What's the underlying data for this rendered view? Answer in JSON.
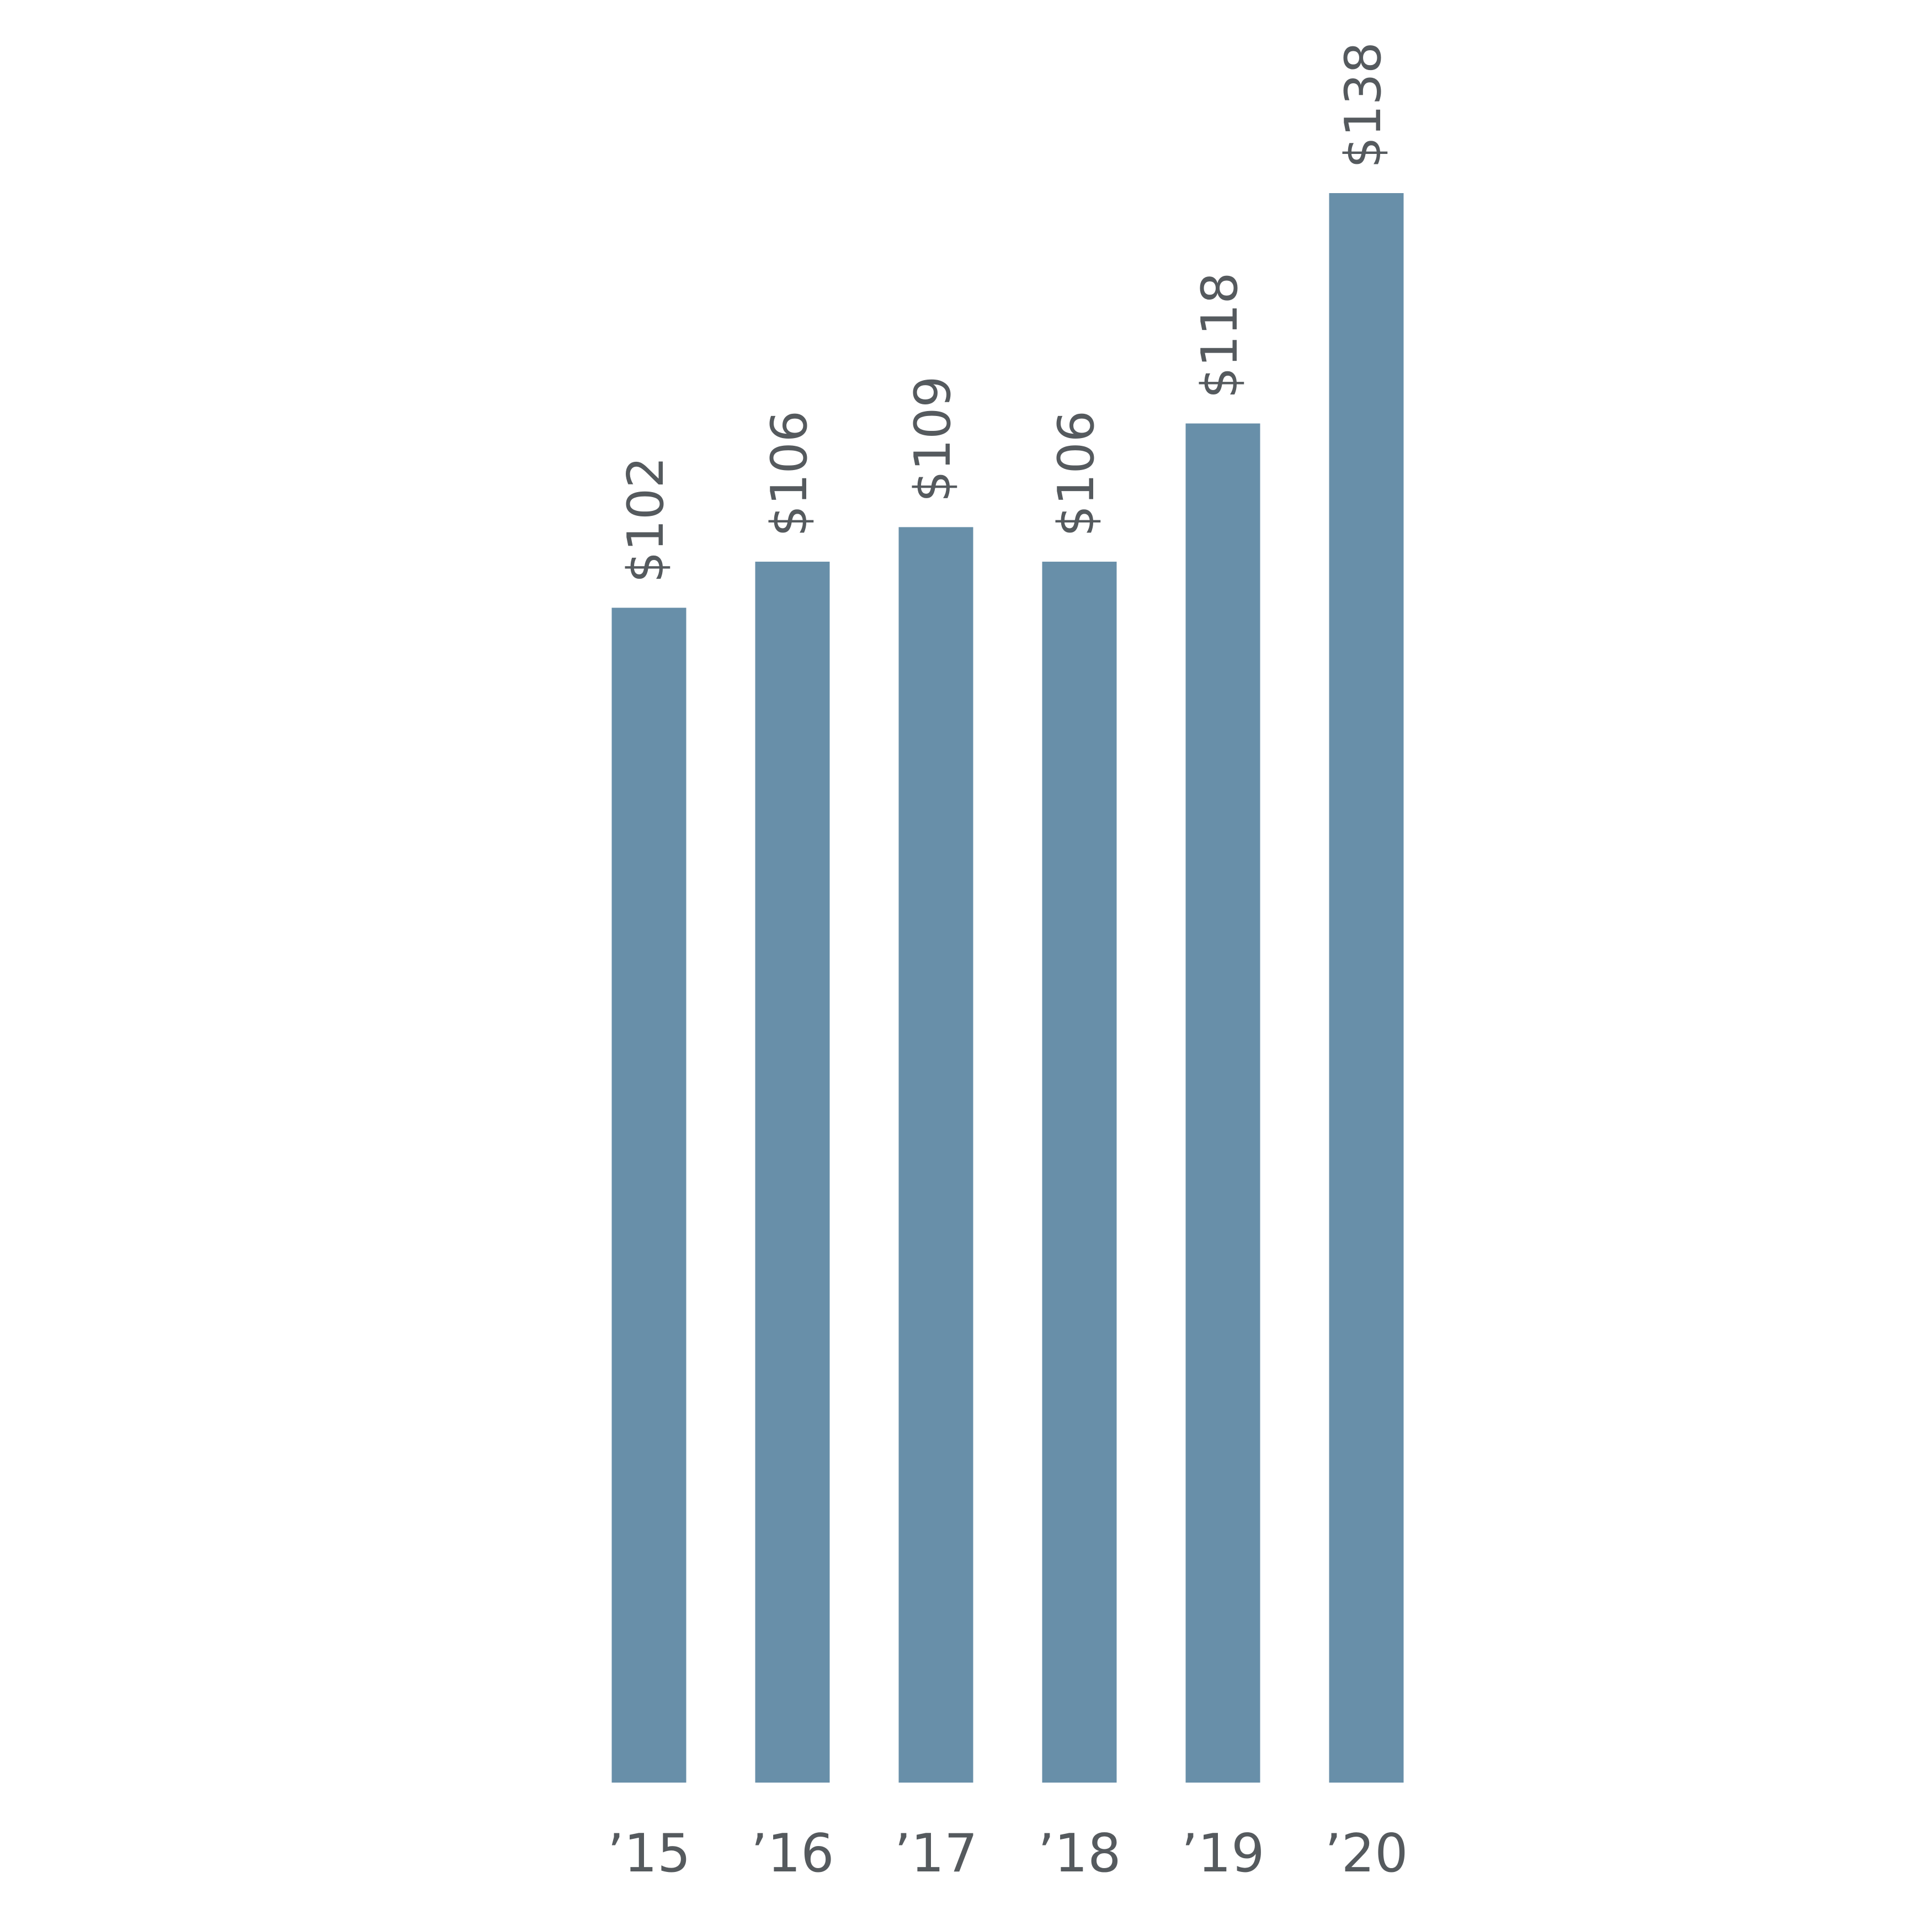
{
  "chart_data": {
    "type": "bar",
    "categories": [
      "’15",
      "’16",
      "’17",
      "’18",
      "’19",
      "’20"
    ],
    "values": [
      102,
      106,
      109,
      106,
      118,
      138
    ],
    "value_labels": [
      "$102",
      "$106",
      "$109",
      "$106",
      "$118",
      "$138"
    ],
    "color": "#688fa9"
  }
}
